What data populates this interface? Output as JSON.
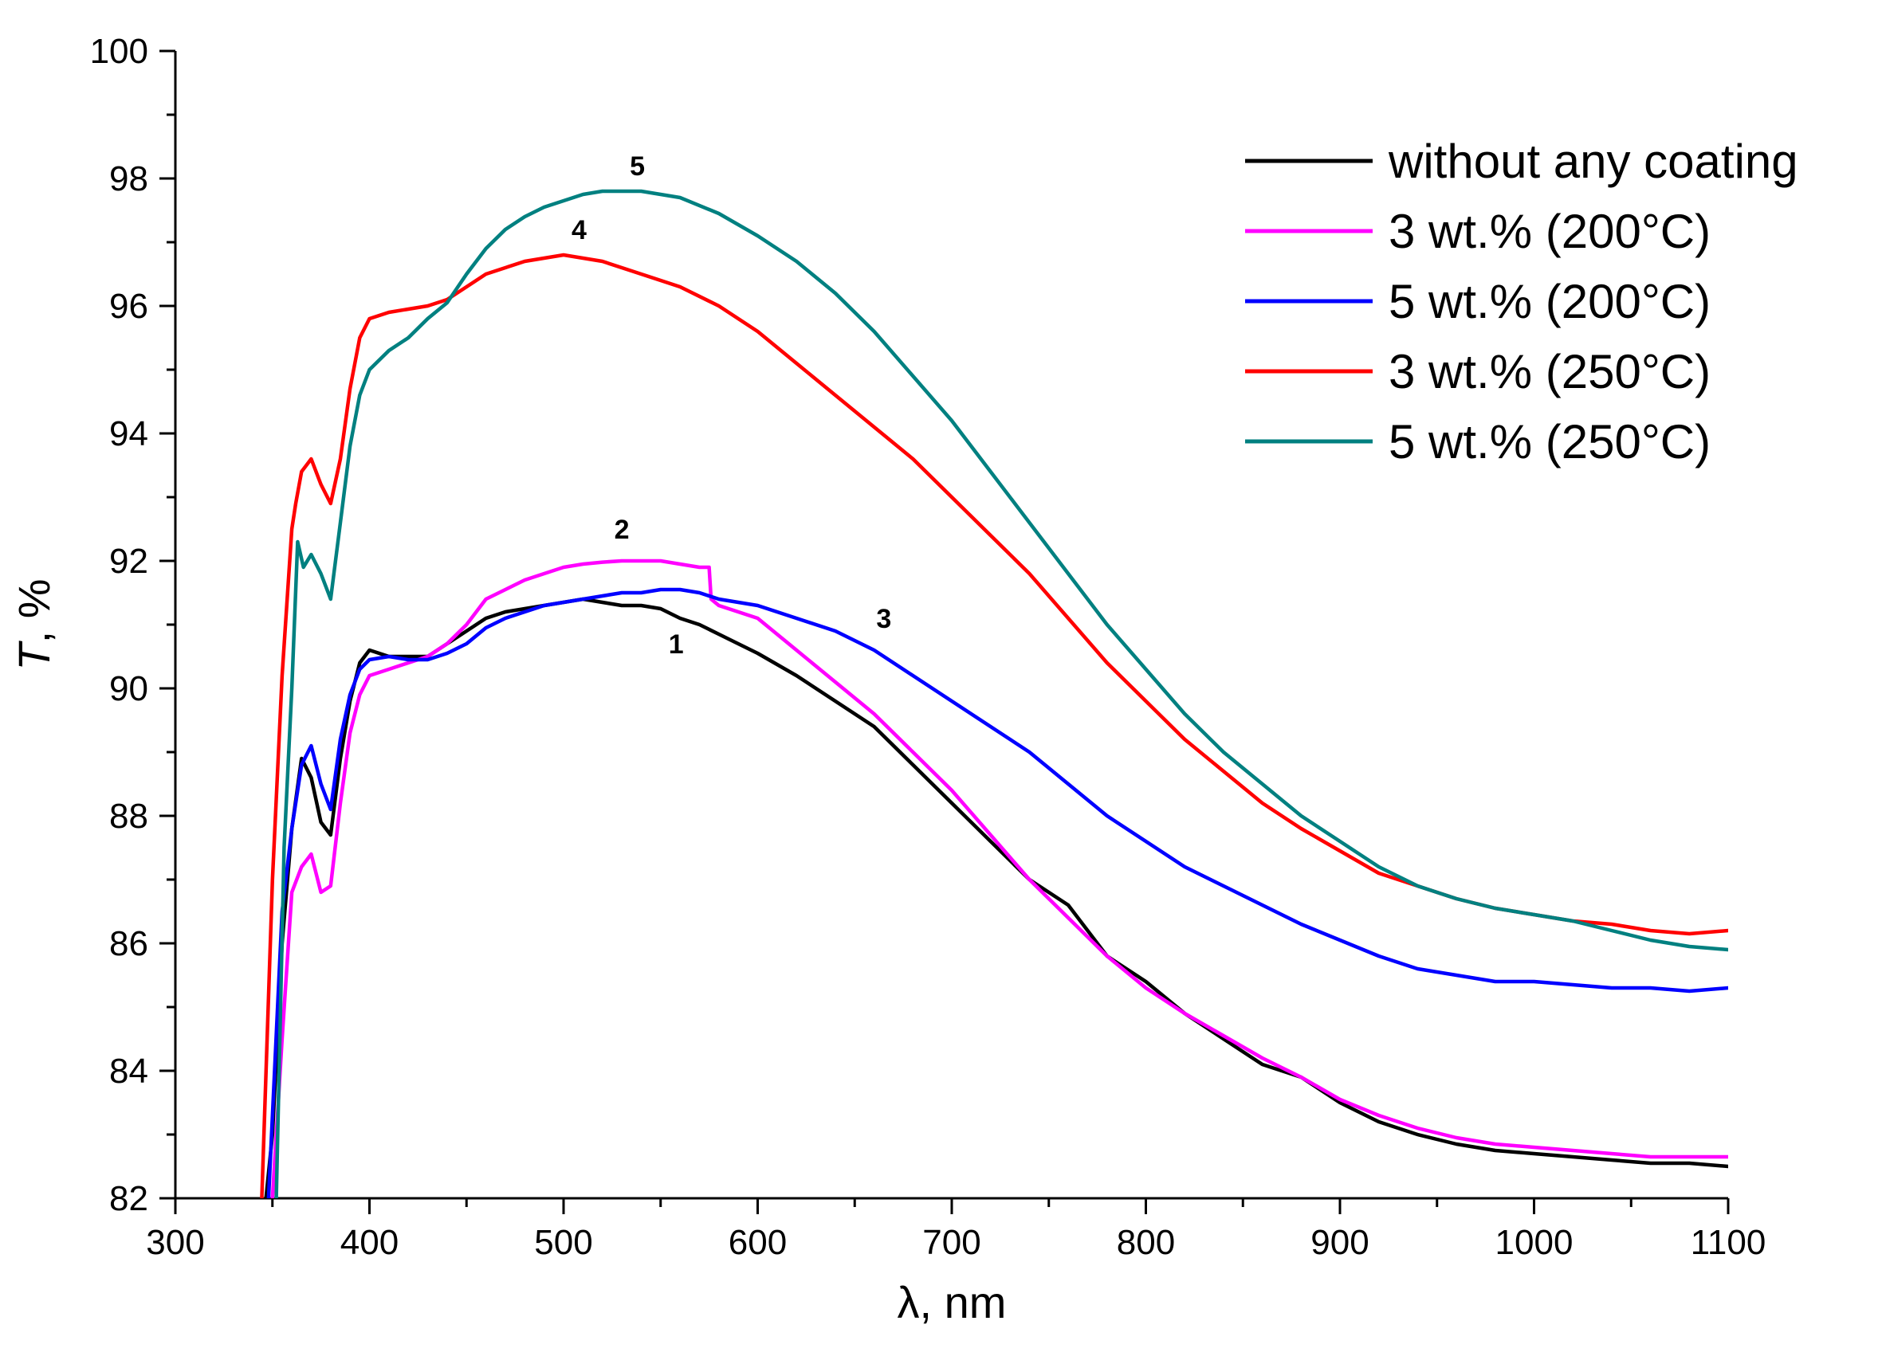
{
  "chart_data": {
    "type": "line",
    "title": "",
    "xlabel": "λ, nm",
    "ylabel_italic": "T",
    "ylabel_rest": ", %",
    "xlim": [
      300,
      1100
    ],
    "ylim": [
      82,
      100
    ],
    "xticks": [
      300,
      400,
      500,
      600,
      700,
      800,
      900,
      1000,
      1100
    ],
    "yticks": [
      82,
      84,
      86,
      88,
      90,
      92,
      94,
      96,
      98,
      100
    ],
    "grid": false,
    "legend_position": "top-right",
    "series": [
      {
        "name": "without any coating",
        "label": "1",
        "color": "#000000",
        "x": [
          345,
          350,
          355,
          360,
          365,
          370,
          375,
          380,
          385,
          390,
          395,
          400,
          410,
          420,
          430,
          440,
          450,
          460,
          470,
          480,
          490,
          500,
          510,
          520,
          530,
          540,
          550,
          560,
          570,
          580,
          590,
          600,
          620,
          640,
          660,
          680,
          700,
          720,
          740,
          760,
          780,
          800,
          820,
          840,
          860,
          880,
          900,
          920,
          940,
          960,
          980,
          1000,
          1020,
          1040,
          1060,
          1080,
          1100
        ],
        "y": [
          81.5,
          83.0,
          86.0,
          87.8,
          88.9,
          88.6,
          87.9,
          87.7,
          88.9,
          89.8,
          90.4,
          90.6,
          90.5,
          90.5,
          90.5,
          90.7,
          90.9,
          91.1,
          91.2,
          91.25,
          91.3,
          91.35,
          91.4,
          91.35,
          91.3,
          91.3,
          91.25,
          91.1,
          91.0,
          90.85,
          90.7,
          90.55,
          90.2,
          89.8,
          89.4,
          88.8,
          88.2,
          87.6,
          87.0,
          86.6,
          85.8,
          85.4,
          84.9,
          84.5,
          84.1,
          83.9,
          83.5,
          83.2,
          83.0,
          82.85,
          82.75,
          82.7,
          82.65,
          82.6,
          82.55,
          82.55,
          82.5
        ]
      },
      {
        "name": "3 wt.% (200°C)",
        "label": "2",
        "color": "#ff00ff",
        "x": [
          350,
          355,
          360,
          365,
          370,
          375,
          380,
          385,
          390,
          395,
          400,
          410,
          420,
          430,
          440,
          450,
          460,
          470,
          480,
          490,
          500,
          510,
          520,
          530,
          540,
          550,
          560,
          570,
          575,
          576,
          580,
          600,
          620,
          640,
          660,
          680,
          700,
          720,
          740,
          760,
          780,
          800,
          820,
          840,
          860,
          880,
          900,
          920,
          940,
          960,
          980,
          1000,
          1020,
          1040,
          1060,
          1080,
          1100
        ],
        "y": [
          82.0,
          84.5,
          86.8,
          87.2,
          87.4,
          86.8,
          86.9,
          88.2,
          89.3,
          89.9,
          90.2,
          90.3,
          90.4,
          90.5,
          90.7,
          91.0,
          91.4,
          91.55,
          91.7,
          91.8,
          91.9,
          91.95,
          91.98,
          92.0,
          92.0,
          92.0,
          91.95,
          91.9,
          91.9,
          91.4,
          91.3,
          91.1,
          90.6,
          90.1,
          89.6,
          89.0,
          88.4,
          87.7,
          87.0,
          86.4,
          85.8,
          85.3,
          84.9,
          84.55,
          84.2,
          83.9,
          83.55,
          83.3,
          83.1,
          82.95,
          82.85,
          82.8,
          82.75,
          82.7,
          82.65,
          82.65,
          82.65
        ]
      },
      {
        "name": "5 wt.% (200°C)",
        "label": "3",
        "color": "#0000ff",
        "x": [
          348,
          355,
          360,
          365,
          370,
          375,
          380,
          385,
          390,
          395,
          400,
          410,
          420,
          430,
          440,
          450,
          460,
          470,
          480,
          490,
          500,
          510,
          520,
          530,
          540,
          550,
          560,
          570,
          580,
          600,
          620,
          640,
          660,
          680,
          700,
          720,
          740,
          760,
          780,
          800,
          820,
          840,
          860,
          880,
          900,
          920,
          940,
          960,
          980,
          1000,
          1020,
          1040,
          1060,
          1080,
          1100
        ],
        "y": [
          82.0,
          86.5,
          87.8,
          88.8,
          89.1,
          88.5,
          88.1,
          89.2,
          89.9,
          90.3,
          90.45,
          90.5,
          90.45,
          90.45,
          90.55,
          90.7,
          90.95,
          91.1,
          91.2,
          91.3,
          91.35,
          91.4,
          91.45,
          91.5,
          91.5,
          91.55,
          91.55,
          91.5,
          91.4,
          91.3,
          91.1,
          90.9,
          90.6,
          90.2,
          89.8,
          89.4,
          89.0,
          88.5,
          88.0,
          87.6,
          87.2,
          86.9,
          86.6,
          86.3,
          86.05,
          85.8,
          85.6,
          85.5,
          85.4,
          85.4,
          85.35,
          85.3,
          85.3,
          85.25,
          85.3
        ]
      },
      {
        "name": "3 wt.% (250°C)",
        "label": "4",
        "color": "#ff0000",
        "x": [
          344,
          350,
          355,
          360,
          362,
          365,
          370,
          375,
          380,
          385,
          390,
          395,
          400,
          410,
          420,
          430,
          440,
          450,
          460,
          470,
          480,
          490,
          500,
          510,
          520,
          530,
          540,
          550,
          560,
          580,
          600,
          620,
          640,
          660,
          680,
          700,
          720,
          740,
          760,
          780,
          800,
          820,
          840,
          860,
          880,
          900,
          920,
          940,
          960,
          980,
          1000,
          1020,
          1040,
          1060,
          1080,
          1100
        ],
        "y": [
          81.5,
          87.0,
          90.2,
          92.5,
          92.9,
          93.4,
          93.6,
          93.2,
          92.9,
          93.6,
          94.7,
          95.5,
          95.8,
          95.9,
          95.95,
          96.0,
          96.1,
          96.3,
          96.5,
          96.6,
          96.7,
          96.75,
          96.8,
          96.75,
          96.7,
          96.6,
          96.5,
          96.4,
          96.3,
          96.0,
          95.6,
          95.1,
          94.6,
          94.1,
          93.6,
          93.0,
          92.4,
          91.8,
          91.1,
          90.4,
          89.8,
          89.2,
          88.7,
          88.2,
          87.8,
          87.45,
          87.1,
          86.9,
          86.7,
          86.55,
          86.45,
          86.35,
          86.3,
          86.2,
          86.15,
          86.2
        ]
      },
      {
        "name": "5 wt.% (250°C)",
        "label": "5",
        "color": "#008080",
        "x": [
          352,
          356,
          360,
          363,
          366,
          370,
          375,
          380,
          385,
          390,
          395,
          400,
          410,
          420,
          430,
          440,
          450,
          460,
          470,
          480,
          490,
          500,
          510,
          520,
          530,
          540,
          550,
          560,
          580,
          600,
          620,
          640,
          660,
          680,
          700,
          720,
          740,
          760,
          780,
          800,
          820,
          840,
          860,
          880,
          900,
          920,
          940,
          960,
          980,
          1000,
          1020,
          1040,
          1060,
          1080,
          1100
        ],
        "y": [
          82.0,
          87.5,
          90.0,
          92.3,
          91.9,
          92.1,
          91.8,
          91.4,
          92.6,
          93.8,
          94.6,
          95.0,
          95.3,
          95.5,
          95.8,
          96.05,
          96.5,
          96.9,
          97.2,
          97.4,
          97.55,
          97.65,
          97.75,
          97.8,
          97.8,
          97.8,
          97.75,
          97.7,
          97.45,
          97.1,
          96.7,
          96.2,
          95.6,
          94.9,
          94.2,
          93.4,
          92.6,
          91.8,
          91.0,
          90.3,
          89.6,
          89.0,
          88.5,
          88.0,
          87.6,
          87.2,
          86.9,
          86.7,
          86.55,
          86.45,
          86.35,
          86.2,
          86.05,
          85.95,
          85.9
        ]
      }
    ],
    "curve_labels": [
      {
        "text": "1",
        "x": 558,
        "y": 90.55
      },
      {
        "text": "2",
        "x": 530,
        "y": 92.35
      },
      {
        "text": "3",
        "x": 665,
        "y": 90.95
      },
      {
        "text": "4",
        "x": 508,
        "y": 97.05
      },
      {
        "text": "5",
        "x": 538,
        "y": 98.05
      }
    ]
  }
}
